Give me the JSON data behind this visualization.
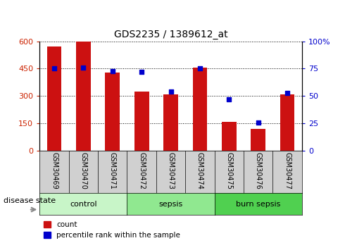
{
  "title": "GDS2235 / 1389612_at",
  "samples": [
    "GSM30469",
    "GSM30470",
    "GSM30471",
    "GSM30472",
    "GSM30473",
    "GSM30474",
    "GSM30475",
    "GSM30476",
    "GSM30477"
  ],
  "counts": [
    570,
    600,
    430,
    325,
    310,
    455,
    160,
    120,
    310
  ],
  "percentiles": [
    75,
    76,
    73,
    72,
    54,
    75,
    47,
    26,
    53
  ],
  "ylim_left": [
    0,
    600
  ],
  "ylim_right": [
    0,
    100
  ],
  "yticks_left": [
    0,
    150,
    300,
    450,
    600
  ],
  "yticks_right": [
    0,
    25,
    50,
    75,
    100
  ],
  "disease_groups": [
    {
      "label": "control",
      "indices": [
        0,
        1,
        2
      ],
      "color": "#c8f5c8"
    },
    {
      "label": "sepsis",
      "indices": [
        3,
        4,
        5
      ],
      "color": "#90e890"
    },
    {
      "label": "burn sepsis",
      "indices": [
        6,
        7,
        8
      ],
      "color": "#50d050"
    }
  ],
  "bar_color": "#cc1111",
  "dot_color": "#0000cc",
  "tick_label_bg": "#d0d0d0",
  "legend_count_label": "count",
  "legend_pct_label": "percentile rank within the sample",
  "disease_state_label": "disease state"
}
